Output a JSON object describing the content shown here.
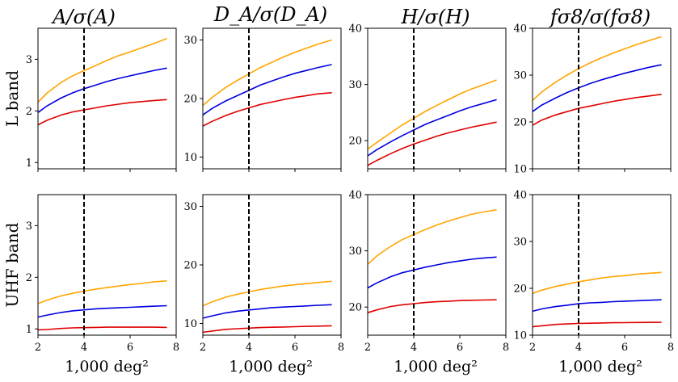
{
  "chart_data": {
    "type": "line",
    "layout": "2x4 grid",
    "xlabel": "1,000 deg²",
    "xlim": [
      2,
      8
    ],
    "xticks": [
      2,
      4,
      6,
      8
    ],
    "x": [
      2,
      2.4,
      3,
      3.5,
      4,
      4.5,
      5,
      5.5,
      6,
      6.5,
      7,
      7.6
    ],
    "reference_line": {
      "x": 4,
      "style": "dashed",
      "color": "#000000"
    },
    "column_titles": [
      "A/σ(A)",
      "D_A/σ(D_A)",
      "H/σ(H)",
      "fσ8/σ(fσ8)"
    ],
    "row_labels": [
      "L band",
      "UHF band"
    ],
    "series_colors": {
      "orange": "#ffa500",
      "blue": "#0000e0",
      "red": "#e00000"
    },
    "panels": [
      {
        "name": "L-A",
        "row": 0,
        "col": 0,
        "ylim": [
          0.88,
          3.6
        ],
        "yticks": [
          1,
          2,
          3
        ],
        "series": [
          {
            "name": "orange",
            "values": [
              2.17,
              2.35,
              2.55,
              2.68,
              2.78,
              2.88,
              2.98,
              3.07,
              3.14,
              3.22,
              3.3,
              3.4
            ]
          },
          {
            "name": "blue",
            "values": [
              1.97,
              2.1,
              2.25,
              2.35,
              2.43,
              2.5,
              2.57,
              2.63,
              2.68,
              2.73,
              2.78,
              2.83
            ]
          },
          {
            "name": "red",
            "values": [
              1.73,
              1.82,
              1.92,
              1.98,
              2.02,
              2.06,
              2.1,
              2.13,
              2.16,
              2.18,
              2.2,
              2.22
            ]
          }
        ]
      },
      {
        "name": "L-DA",
        "row": 0,
        "col": 1,
        "ylim": [
          8,
          32
        ],
        "yticks": [
          10,
          20,
          30
        ],
        "series": [
          {
            "name": "orange",
            "values": [
              18.8,
              20.2,
              21.9,
              23.1,
              24.2,
              25.3,
              26.2,
              27.1,
              27.9,
              28.6,
              29.3,
              30.0
            ]
          },
          {
            "name": "blue",
            "values": [
              17.2,
              18.3,
              19.6,
              20.5,
              21.4,
              22.3,
              23.0,
              23.7,
              24.3,
              24.8,
              25.3,
              25.8
            ]
          },
          {
            "name": "red",
            "values": [
              15.3,
              16.1,
              17.1,
              17.8,
              18.4,
              19.0,
              19.4,
              19.8,
              20.2,
              20.5,
              20.8,
              21.0
            ]
          }
        ]
      },
      {
        "name": "L-H",
        "row": 0,
        "col": 2,
        "ylim": [
          15,
          40
        ],
        "yticks": [
          20,
          30,
          40
        ],
        "series": [
          {
            "name": "orange",
            "values": [
              18.5,
              19.7,
              21.4,
              22.8,
              24.0,
              25.2,
              26.3,
              27.3,
              28.3,
              29.2,
              29.9,
              30.8
            ]
          },
          {
            "name": "blue",
            "values": [
              17.3,
              18.4,
              19.8,
              20.9,
              21.9,
              22.9,
              23.7,
              24.5,
              25.3,
              26.0,
              26.6,
              27.3
            ]
          },
          {
            "name": "red",
            "values": [
              15.6,
              16.5,
              17.7,
              18.6,
              19.4,
              20.1,
              20.8,
              21.4,
              21.9,
              22.4,
              22.8,
              23.3
            ]
          }
        ]
      },
      {
        "name": "L-fs8",
        "row": 0,
        "col": 3,
        "ylim": [
          10,
          40
        ],
        "yticks": [
          10,
          20,
          30,
          40
        ],
        "series": [
          {
            "name": "orange",
            "values": [
              24.6,
              26.4,
              28.5,
              30.0,
              31.4,
              32.6,
              33.7,
              34.7,
              35.6,
              36.5,
              37.3,
              38.2
            ]
          },
          {
            "name": "blue",
            "values": [
              22.2,
              23.6,
              25.1,
              26.3,
              27.3,
              28.2,
              29.0,
              29.7,
              30.4,
              31.0,
              31.6,
              32.2
            ]
          },
          {
            "name": "red",
            "values": [
              19.3,
              20.4,
              21.5,
              22.2,
              22.9,
              23.4,
              23.9,
              24.4,
              24.8,
              25.2,
              25.5,
              25.9
            ]
          }
        ]
      },
      {
        "name": "UHF-A",
        "row": 1,
        "col": 0,
        "ylim": [
          0.88,
          3.6
        ],
        "yticks": [
          1,
          2,
          3
        ],
        "series": [
          {
            "name": "orange",
            "values": [
              1.49,
              1.56,
              1.64,
              1.69,
              1.73,
              1.77,
              1.8,
              1.83,
              1.86,
              1.88,
              1.91,
              1.93
            ]
          },
          {
            "name": "blue",
            "values": [
              1.23,
              1.27,
              1.32,
              1.35,
              1.37,
              1.39,
              1.4,
              1.41,
              1.42,
              1.43,
              1.44,
              1.45
            ]
          },
          {
            "name": "red",
            "values": [
              0.98,
              0.99,
              1.01,
              1.02,
              1.025,
              1.03,
              1.035,
              1.035,
              1.035,
              1.035,
              1.035,
              1.03
            ]
          }
        ]
      },
      {
        "name": "UHF-DA",
        "row": 1,
        "col": 1,
        "ylim": [
          8,
          32
        ],
        "yticks": [
          10,
          20,
          30
        ],
        "series": [
          {
            "name": "orange",
            "values": [
              13.0,
              13.7,
              14.5,
              15.0,
              15.4,
              15.8,
              16.1,
              16.4,
              16.6,
              16.8,
              17.0,
              17.2
            ]
          },
          {
            "name": "blue",
            "values": [
              10.9,
              11.3,
              11.8,
              12.1,
              12.3,
              12.5,
              12.7,
              12.8,
              12.9,
              13.0,
              13.1,
              13.2
            ]
          },
          {
            "name": "red",
            "values": [
              8.5,
              8.7,
              9.0,
              9.1,
              9.2,
              9.3,
              9.35,
              9.4,
              9.45,
              9.5,
              9.55,
              9.6
            ]
          }
        ]
      },
      {
        "name": "UHF-H",
        "row": 1,
        "col": 2,
        "ylim": [
          15,
          40
        ],
        "yticks": [
          20,
          30,
          40
        ],
        "series": [
          {
            "name": "orange",
            "values": [
              27.6,
              29.1,
              30.8,
              32.0,
              32.9,
              33.8,
              34.6,
              35.3,
              35.9,
              36.5,
              36.9,
              37.3
            ]
          },
          {
            "name": "blue",
            "values": [
              23.4,
              24.3,
              25.4,
              26.1,
              26.6,
              27.1,
              27.5,
              27.9,
              28.2,
              28.5,
              28.7,
              28.9
            ]
          },
          {
            "name": "red",
            "values": [
              19.0,
              19.5,
              20.1,
              20.4,
              20.6,
              20.8,
              20.95,
              21.05,
              21.15,
              21.2,
              21.25,
              21.3
            ]
          }
        ]
      },
      {
        "name": "UHF-fs8",
        "row": 1,
        "col": 3,
        "ylim": [
          10,
          40
        ],
        "yticks": [
          10,
          20,
          30,
          40
        ],
        "series": [
          {
            "name": "orange",
            "values": [
              18.9,
              19.6,
              20.4,
              20.9,
              21.4,
              21.8,
              22.2,
              22.5,
              22.7,
              23.0,
              23.2,
              23.4
            ]
          },
          {
            "name": "blue",
            "values": [
              15.1,
              15.6,
              16.1,
              16.4,
              16.7,
              16.9,
              17.0,
              17.15,
              17.25,
              17.35,
              17.45,
              17.55
            ]
          },
          {
            "name": "red",
            "values": [
              11.8,
              12.0,
              12.3,
              12.4,
              12.5,
              12.55,
              12.6,
              12.65,
              12.68,
              12.7,
              12.72,
              12.75
            ]
          }
        ]
      }
    ]
  }
}
